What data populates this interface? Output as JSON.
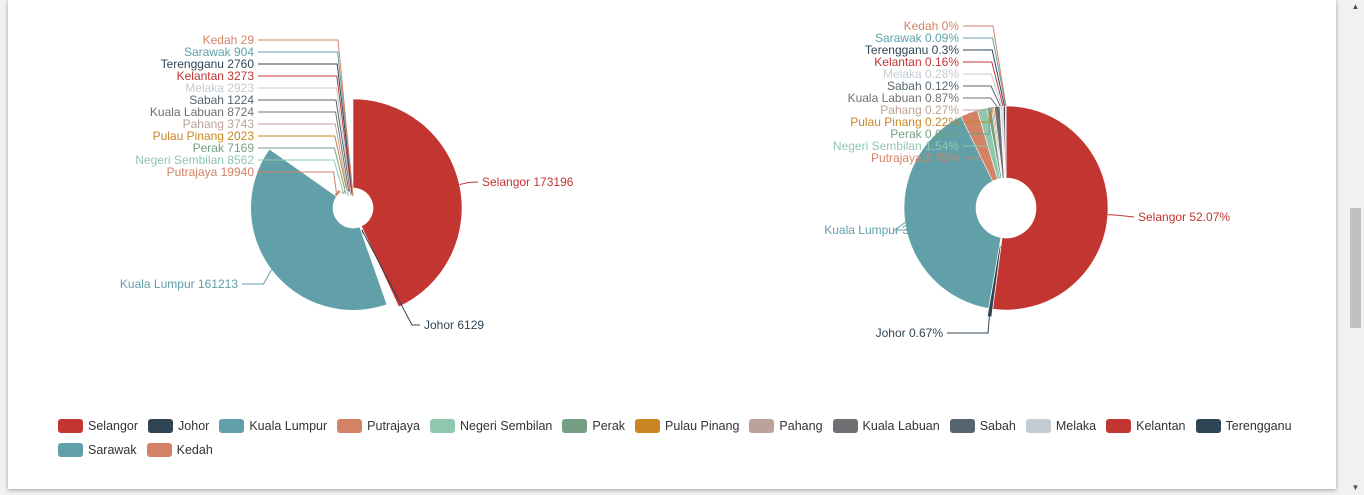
{
  "legend": {
    "items": [
      {
        "name": "Selangor",
        "color": "#c23531"
      },
      {
        "name": "Johor",
        "color": "#2f4554"
      },
      {
        "name": "Kuala Lumpur",
        "color": "#61a0a8"
      },
      {
        "name": "Putrajaya",
        "color": "#d48265"
      },
      {
        "name": "Negeri Sembilan",
        "color": "#91c7ae"
      },
      {
        "name": "Perak",
        "color": "#749f83"
      },
      {
        "name": "Pulau Pinang",
        "color": "#ca8622"
      },
      {
        "name": "Pahang",
        "color": "#bda29a"
      },
      {
        "name": "Kuala Labuan",
        "color": "#6e7074"
      },
      {
        "name": "Sabah",
        "color": "#546570"
      },
      {
        "name": "Melaka",
        "color": "#c4ccd3"
      },
      {
        "name": "Kelantan",
        "color": "#c23531"
      },
      {
        "name": "Terengganu",
        "color": "#2f4554"
      },
      {
        "name": "Sarawak",
        "color": "#61a0a8"
      },
      {
        "name": "Kedah",
        "color": "#d48265"
      }
    ]
  },
  "chart_data": [
    {
      "type": "pie",
      "variant": "rose-radius-donut",
      "legend_position": "bottom",
      "categories": [
        "Selangor",
        "Johor",
        "Kuala Lumpur",
        "Putrajaya",
        "Negeri Sembilan",
        "Perak",
        "Pulau Pinang",
        "Pahang",
        "Kuala Labuan",
        "Sabah",
        "Melaka",
        "Kelantan",
        "Terengganu",
        "Sarawak",
        "Kedah"
      ],
      "values": [
        173196,
        6129,
        161213,
        19940,
        8562,
        7169,
        2023,
        3743,
        8724,
        1224,
        2923,
        3273,
        2760,
        904,
        29
      ],
      "labels": [
        "Selangor 173196",
        "Johor 6129",
        "Kuala Lumpur 161213",
        "Putrajaya 19940",
        "Negeri Sembilan 8562",
        "Perak 7169",
        "Pulau Pinang 2023",
        "Pahang 3743",
        "Kuala Labuan 8724",
        "Sabah 1224",
        "Melaka 2923",
        "Kelantan 3273",
        "Terengganu 2760",
        "Sarawak 904",
        "Kedah 29"
      ]
    },
    {
      "type": "pie",
      "variant": "donut",
      "legend_position": "bottom",
      "categories": [
        "Selangor",
        "Johor",
        "Kuala Lumpur",
        "Putrajaya",
        "Negeri Sembilan",
        "Perak",
        "Pulau Pinang",
        "Pahang",
        "Kuala Labuan",
        "Sabah",
        "Melaka",
        "Kelantan",
        "Terengganu",
        "Sarawak",
        "Kedah"
      ],
      "values": [
        52.07,
        0.67,
        39.97,
        2.75,
        1.54,
        0.69,
        0.22,
        0.27,
        0.87,
        0.12,
        0.28,
        0.16,
        0.3,
        0.09,
        0
      ],
      "unit": "%",
      "labels": [
        "Selangor 52.07%",
        "Johor 0.67%",
        "Kuala Lumpur 39.97%",
        "Putrajaya 2.75%",
        "Negeri Sembilan 1.54%",
        "Perak 0.69%",
        "Pulau Pinang 0.22%",
        "Pahang 0.27%",
        "Kuala Labuan 0.87%",
        "Sabah 0.12%",
        "Melaka 0.28%",
        "Kelantan 0.16%",
        "Terengganu 0.3%",
        "Sarawak 0.09%",
        "Kedah 0%"
      ]
    }
  ]
}
